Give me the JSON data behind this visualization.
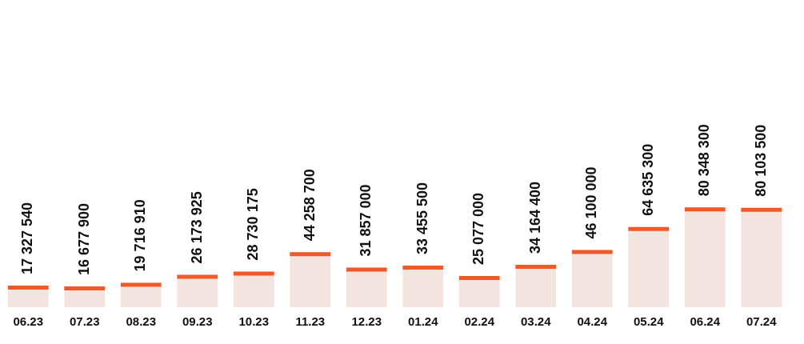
{
  "chart_data": {
    "type": "bar",
    "categories": [
      "06.23",
      "07.23",
      "08.23",
      "09.23",
      "10.23",
      "11.23",
      "12.23",
      "01.24",
      "02.24",
      "03.24",
      "04.24",
      "05.24",
      "06.24",
      "07.24"
    ],
    "series": [
      {
        "color": "#f4e4df",
        "values": [
          17327540,
          16677900,
          19716910,
          26173925,
          28730175,
          44258700,
          31857000,
          33455500,
          25077000,
          34164400,
          46100000,
          64635300,
          80348300,
          80103500
        ],
        "value_labels": [
          "17 327 540",
          "16 677 900",
          "19 716 910",
          "26 173 925",
          "28 730 175",
          "44 258 700",
          "31 857 000",
          "33 455 500",
          "25 077 000",
          "34 164 400",
          "46 100 000",
          "64 635 300",
          "80 348 300",
          "80 103 500"
        ]
      }
    ],
    "legend": false,
    "grid": false
  }
}
